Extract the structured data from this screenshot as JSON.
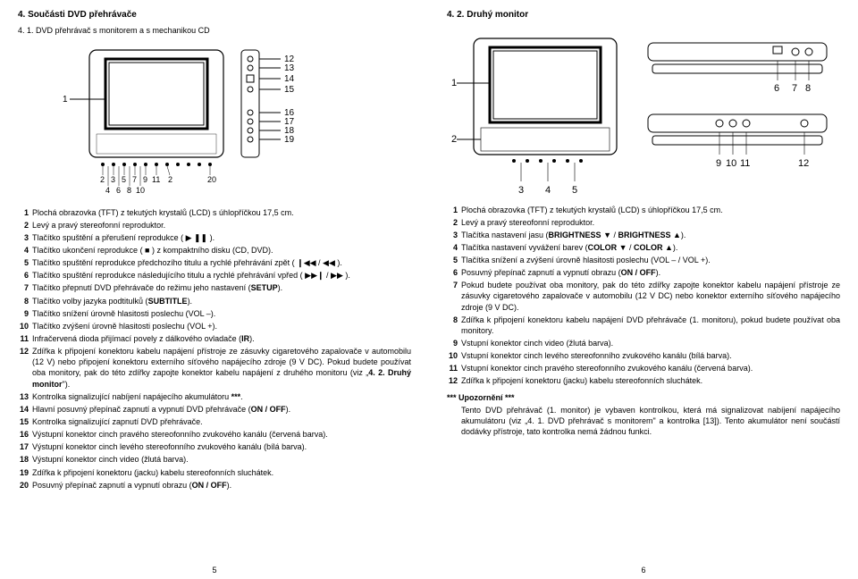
{
  "left": {
    "h1": "4. Součásti DVD přehrávače",
    "h2": "4. 1. DVD přehrávač s monitorem a s mechanikou CD",
    "items": [
      {
        "n": "1",
        "t": "Plochá obrazovka (TFT) z tekutých krystalů (LCD) s úhlopříčkou 17,5 cm."
      },
      {
        "n": "2",
        "t": "Levý a pravý stereofonní reproduktor."
      },
      {
        "n": "3",
        "t": "Tlačítko spuštění a přerušení reprodukce ( ▶ ❚❚ )."
      },
      {
        "n": "4",
        "t": "Tlačítko ukončení reprodukce ( ■ ) z kompaktního disku (CD, DVD)."
      },
      {
        "n": "5",
        "t": "Tlačítko spuštění reprodukce předchozího titulu a rychlé přehrávání zpět ( ❙◀◀ / ◀◀ )."
      },
      {
        "n": "6",
        "t": "Tlačítko spuštění reprodukce následujícího titulu a rychlé přehrávání vpřed ( ▶▶❙ / ▶▶ )."
      },
      {
        "n": "7",
        "t": "Tlačítko přepnutí DVD přehrávače do režimu jeho nastavení (SETUP)."
      },
      {
        "n": "8",
        "t": "Tlačítko volby jazyka podtitulků (SUBTITLE)."
      },
      {
        "n": "9",
        "t": "Tlačítko snížení úrovně hlasitosti poslechu (VOL –)."
      },
      {
        "n": "10",
        "t": "Tlačítko zvýšení úrovně hlasitosti poslechu (VOL +)."
      },
      {
        "n": "11",
        "t": "Infračervená dioda přijímací povely z dálkového ovladače (IR)."
      },
      {
        "n": "12",
        "t": "Zdířka k připojení konektoru kabelu napájení přístroje ze zásuvky cigaretového zapalovače v automobilu (12 V) nebo připojení konektoru externího síťového napájecího zdroje (9 V DC). Pokud budete používat oba monitory, pak do této zdířky zapojte konektor kabelu napájení z druhého monitoru (viz „4. 2. Druhý monitor\")."
      },
      {
        "n": "13",
        "t": "Kontrolka signalizující nabíjení napájecího akumulátoru ***."
      },
      {
        "n": "14",
        "t": "Hlavní posuvný přepínač zapnutí a vypnutí DVD přehrávače (ON / OFF)."
      },
      {
        "n": "15",
        "t": "Kontrolka signalizující zapnutí DVD přehrávače."
      },
      {
        "n": "16",
        "t": "Výstupní konektor cinch pravého stereofonního zvukového kanálu (červená barva)."
      },
      {
        "n": "17",
        "t": "Výstupní konektor cinch levého stereofonního zvukového kanálu (bílá barva)."
      },
      {
        "n": "18",
        "t": "Výstupní konektor cinch video (žlutá barva)."
      },
      {
        "n": "19",
        "t": "Zdířka k připojení konektoru (jacku) kabelu stereofonních sluchátek."
      },
      {
        "n": "20",
        "t": "Posuvný přepínač zapnutí a vypnutí obrazu (ON / OFF)."
      }
    ],
    "pagenum": "5"
  },
  "right": {
    "h1": "4. 2. Druhý monitor",
    "items": [
      {
        "n": "1",
        "t": "Plochá obrazovka (TFT) z tekutých krystalů (LCD) s úhlopříčkou 17,5 cm."
      },
      {
        "n": "2",
        "t": "Levý a pravý stereofonní reproduktor."
      },
      {
        "n": "3",
        "t": "Tlačítka nastavení jasu (BRIGHTNESS ▼ / BRIGHTNESS ▲)."
      },
      {
        "n": "4",
        "t": "Tlačítka nastavení vyvážení barev (COLOR ▼ / COLOR ▲)."
      },
      {
        "n": "5",
        "t": "Tlačítka snížení a zvýšení úrovně hlasitosti poslechu (VOL – / VOL +)."
      },
      {
        "n": "6",
        "t": "Posuvný přepínač zapnutí a vypnutí obrazu (ON / OFF)."
      },
      {
        "n": "7",
        "t": "Pokud budete používat oba monitory, pak do této zdířky zapojte konektor kabelu napájení přístroje ze zásuvky cigaretového zapalovače v automobilu (12 V DC) nebo konektor externího síťového napájecího zdroje (9 V DC)."
      },
      {
        "n": "8",
        "t": "Zdířka k připojení konektoru kabelu napájení DVD přehrávače (1. monitoru), pokud budete používat oba monitory."
      },
      {
        "n": "9",
        "t": "Vstupní konektor cinch video (žlutá barva)."
      },
      {
        "n": "10",
        "t": "Vstupní konektor cinch levého stereofonního zvukového kanálu (bílá barva)."
      },
      {
        "n": "11",
        "t": "Vstupní konektor cinch pravého stereofonního zvukového kanálu (červená barva)."
      },
      {
        "n": "12",
        "t": "Zdířka k připojení konektoru (jacku) kabelu stereofonních sluchátek."
      }
    ],
    "warnTitle": "*** Upozornění ***",
    "warnBody": "Tento DVD přehrávač (1. monitor) je vybaven kontrolkou, která má signalizovat nabíjení napájecího akumulátoru (viz „4. 1. DVD přehrávač s monitorem\" a kontrolka [13]). Tento akumulátor není součástí dodávky přístroje, tato kontrolka nemá žádnou funkci.",
    "pagenum": "6"
  },
  "diagLeft": {
    "labelsLeft": [
      "1"
    ],
    "labelsRightCol": [
      "12",
      "13",
      "14",
      "15",
      "16",
      "17",
      "18",
      "19"
    ],
    "labelsBottom": [
      "2",
      "3",
      "5",
      "7",
      "9",
      "11",
      "2",
      "4",
      "6",
      "8",
      "10",
      "20"
    ]
  },
  "diagRight": {
    "frontLabels": [
      "1",
      "2"
    ],
    "topLabels": [
      "6",
      "7",
      "8"
    ],
    "bottomLabels": [
      "9",
      "10",
      "11",
      "12"
    ],
    "underLabels": [
      "3",
      "4",
      "5"
    ]
  }
}
